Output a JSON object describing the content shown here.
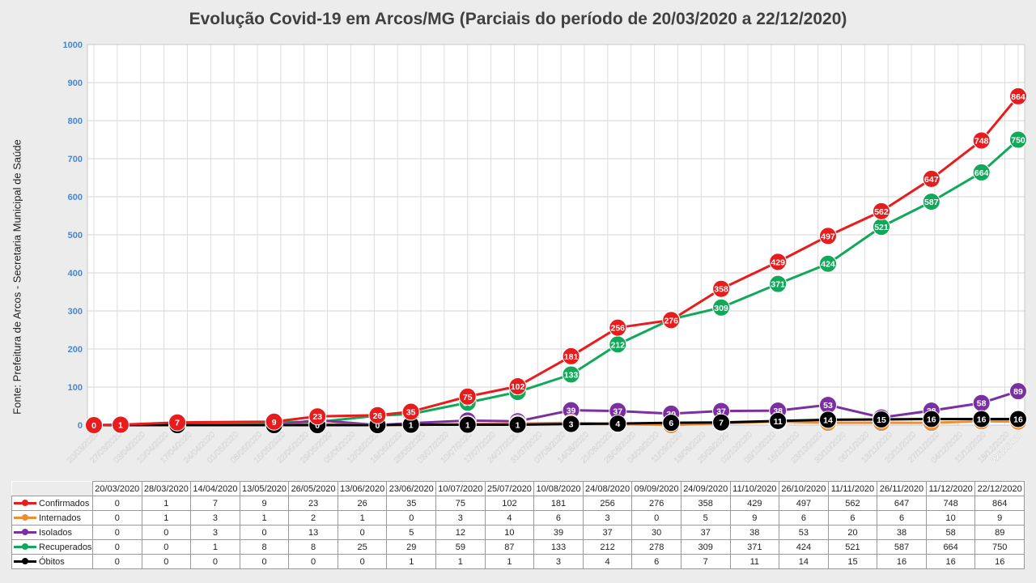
{
  "chart_data": {
    "type": "line",
    "title": "Evolução Covid-19 em Arcos/MG (Parciais do período de 20/03/2020 a 22/12/2020)",
    "ylabel": "Fonte: Prefeitura de Arcos - Secretaria Municipal de Saúde",
    "ylim": [
      0,
      1000
    ],
    "yticks": [
      "0",
      "100",
      "200",
      "300",
      "400",
      "500",
      "600",
      "700",
      "800",
      "900",
      "1000"
    ],
    "grid": true,
    "legend": "table",
    "x_axis_dates": [
      "20/03/2020",
      "27/03/2020",
      "03/04/2020",
      "10/04/2020",
      "17/04/2020",
      "24/04/2020",
      "01/05/2020",
      "08/05/2020",
      "15/05/2020",
      "22/05/2020",
      "29/05/2020",
      "05/06/2020",
      "12/06/2020",
      "19/06/2020",
      "26/06/2020",
      "03/07/2020",
      "10/07/2020",
      "17/07/2020",
      "24/07/2020",
      "31/07/2020",
      "07/08/2020",
      "14/08/2020",
      "21/08/2020",
      "28/08/2020",
      "04/09/2020",
      "11/09/2020",
      "18/09/2020",
      "25/09/2020",
      "02/10/2020",
      "09/10/2020",
      "16/10/2020",
      "23/10/2020",
      "30/10/2020",
      "06/11/2020",
      "13/11/2020",
      "20/11/2020",
      "27/11/2020",
      "04/12/2020",
      "11/12/2020",
      "18/12/2020",
      "22/12/2020"
    ],
    "categories": [
      "20/03/2020",
      "28/03/2020",
      "14/04/2020",
      "13/05/2020",
      "26/05/2020",
      "13/06/2020",
      "23/06/2020",
      "10/07/2020",
      "25/07/2020",
      "10/08/2020",
      "24/08/2020",
      "09/09/2020",
      "24/09/2020",
      "11/10/2020",
      "26/10/2020",
      "11/11/2020",
      "26/11/2020",
      "11/12/2020",
      "22/12/2020"
    ],
    "series": [
      {
        "name": "Confirmados",
        "color": "#e81c1c",
        "values": [
          0,
          1,
          7,
          9,
          23,
          26,
          35,
          75,
          102,
          181,
          256,
          276,
          358,
          429,
          497,
          562,
          647,
          748,
          864
        ]
      },
      {
        "name": "Internados",
        "color": "#f08c32",
        "values": [
          0,
          1,
          3,
          1,
          2,
          1,
          0,
          3,
          4,
          6,
          3,
          0,
          5,
          9,
          6,
          6,
          6,
          10,
          9
        ]
      },
      {
        "name": "Isolados",
        "color": "#7a30a0",
        "values": [
          0,
          0,
          3,
          0,
          13,
          0,
          5,
          12,
          10,
          39,
          37,
          30,
          37,
          38,
          53,
          20,
          38,
          58,
          89
        ]
      },
      {
        "name": "Recuperados",
        "color": "#12a85a",
        "values": [
          0,
          0,
          1,
          8,
          8,
          25,
          29,
          59,
          87,
          133,
          212,
          278,
          309,
          371,
          424,
          521,
          587,
          664,
          750
        ]
      },
      {
        "name": "Óbitos",
        "color": "#000000",
        "values": [
          0,
          0,
          0,
          0,
          0,
          0,
          1,
          1,
          1,
          3,
          4,
          6,
          7,
          11,
          14,
          15,
          16,
          16,
          16
        ]
      }
    ]
  }
}
